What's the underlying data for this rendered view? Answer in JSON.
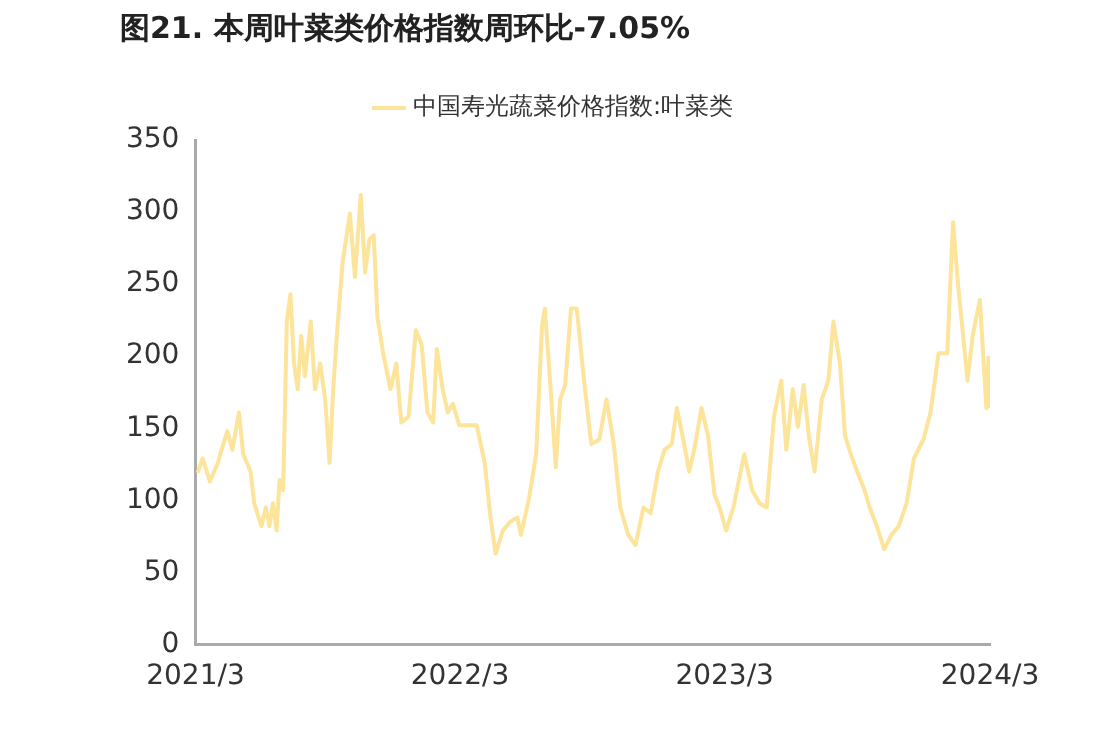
{
  "chart_data": {
    "type": "line",
    "title": "图21. 本周叶菜类价格指数周环比-7.05%",
    "legend": "top",
    "grid": false,
    "marker": "none",
    "line_style": "solid",
    "xlim": [
      "2021-03-01",
      "2024-03-01"
    ],
    "xticks": [
      {
        "value": "2021-03-01",
        "label": "2021/3"
      },
      {
        "value": "2022-03-01",
        "label": "2022/3"
      },
      {
        "value": "2023-03-01",
        "label": "2023/3"
      },
      {
        "value": "2024-03-01",
        "label": "2024/3"
      }
    ],
    "ylim": [
      0,
      350
    ],
    "yticks": [
      0,
      50,
      100,
      150,
      200,
      250,
      300,
      350
    ],
    "x": [
      "2021-03-04",
      "2021-03-11",
      "2021-03-21",
      "2021-04-01",
      "2021-04-06",
      "2021-04-14",
      "2021-04-21",
      "2021-04-30",
      "2021-05-06",
      "2021-05-16",
      "2021-05-21",
      "2021-05-31",
      "2021-06-06",
      "2021-06-11",
      "2021-06-16",
      "2021-06-21",
      "2021-06-25",
      "2021-06-30",
      "2021-07-05",
      "2021-07-10",
      "2021-07-15",
      "2021-07-20",
      "2021-07-25",
      "2021-07-30",
      "2021-08-07",
      "2021-08-13",
      "2021-08-20",
      "2021-08-27",
      "2021-09-02",
      "2021-09-07",
      "2021-09-13",
      "2021-09-20",
      "2021-09-30",
      "2021-10-07",
      "2021-10-15",
      "2021-10-21",
      "2021-10-27",
      "2021-11-02",
      "2021-11-07",
      "2021-11-15",
      "2021-11-25",
      "2021-12-03",
      "2021-12-10",
      "2021-12-20",
      "2021-12-30",
      "2022-01-07",
      "2022-01-15",
      "2022-01-23",
      "2022-01-28",
      "2022-02-05",
      "2022-02-12",
      "2022-02-19",
      "2022-02-28",
      "2022-03-24",
      "2022-04-04",
      "2022-04-12",
      "2022-04-19",
      "2022-04-29",
      "2022-05-09",
      "2022-05-19",
      "2022-05-24",
      "2022-06-04",
      "2022-06-14",
      "2022-06-22",
      "2022-06-26",
      "2022-07-04",
      "2022-07-11",
      "2022-07-17",
      "2022-07-24",
      "2022-08-01",
      "2022-08-09",
      "2022-08-19",
      "2022-08-29",
      "2022-09-09",
      "2022-09-19",
      "2022-09-29",
      "2022-10-08",
      "2022-10-19",
      "2022-10-29",
      "2022-11-09",
      "2022-11-19",
      "2022-11-29",
      "2022-12-08",
      "2022-12-18",
      "2022-12-25",
      "2023-01-03",
      "2023-01-11",
      "2023-01-18",
      "2023-01-28",
      "2023-02-06",
      "2023-02-15",
      "2023-02-22",
      "2023-03-03",
      "2023-03-13",
      "2023-03-28",
      "2023-04-08",
      "2023-04-18",
      "2023-04-28",
      "2023-05-08",
      "2023-05-18",
      "2023-05-25",
      "2023-06-03",
      "2023-06-10",
      "2023-06-18",
      "2023-06-25",
      "2023-07-03",
      "2023-07-13",
      "2023-07-22",
      "2023-07-29",
      "2023-08-07",
      "2023-08-14",
      "2023-08-22",
      "2023-09-02",
      "2023-09-10",
      "2023-09-17",
      "2023-09-27",
      "2023-10-07",
      "2023-10-17",
      "2023-10-27",
      "2023-11-07",
      "2023-11-17",
      "2023-11-30",
      "2023-12-10",
      "2023-12-21",
      "2024-01-02",
      "2024-01-10",
      "2024-01-17",
      "2024-01-24",
      "2024-01-30",
      "2024-02-06",
      "2024-02-16",
      "2024-02-25",
      "2024-02-28",
      "2024-03-01"
    ],
    "series": [
      {
        "name": "中国寿光蔬菜价格指数:叶菜类",
        "color": "#fde49b",
        "values": [
          119,
          129,
          113,
          126,
          135,
          148,
          135,
          161,
          132,
          120,
          98,
          82,
          95,
          82,
          98,
          79,
          114,
          107,
          224,
          243,
          195,
          177,
          214,
          186,
          224,
          177,
          195,
          170,
          126,
          177,
          221,
          265,
          299,
          255,
          312,
          258,
          281,
          284,
          227,
          202,
          177,
          195,
          154,
          158,
          218,
          208,
          161,
          154,
          205,
          177,
          161,
          167,
          152,
          152,
          126,
          88,
          63,
          79,
          85,
          88,
          76,
          101,
          132,
          221,
          233,
          177,
          123,
          170,
          180,
          233,
          233,
          183,
          139,
          142,
          170,
          139,
          95,
          76,
          69,
          95,
          91,
          120,
          135,
          139,
          164,
          142,
          120,
          135,
          164,
          145,
          104,
          95,
          79,
          95,
          132,
          107,
          98,
          95,
          158,
          183,
          135,
          177,
          151,
          180,
          145,
          120,
          170,
          183,
          224,
          195,
          145,
          132,
          117,
          107,
          95,
          82,
          66,
          76,
          82,
          98,
          129,
          142,
          161,
          202,
          202,
          293,
          249,
          214,
          183,
          214,
          239,
          164,
          199,
          164
        ]
      }
    ]
  }
}
